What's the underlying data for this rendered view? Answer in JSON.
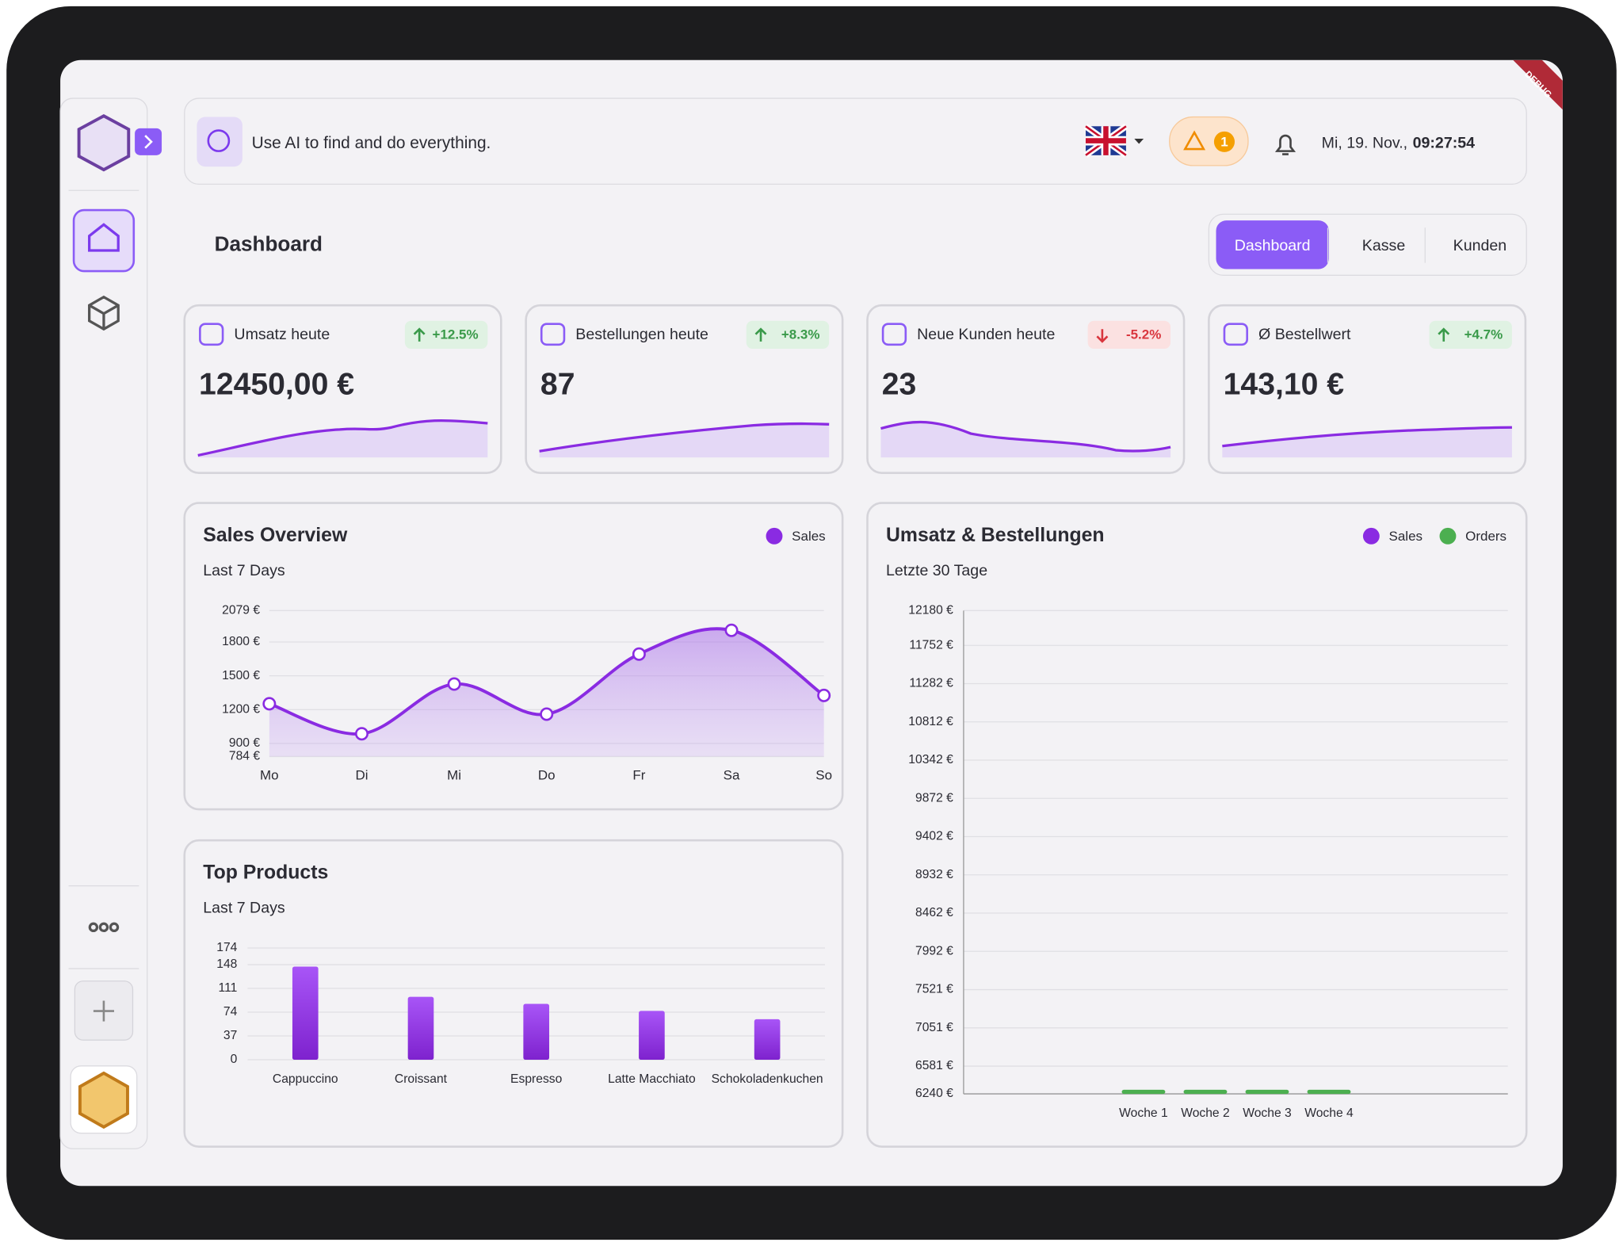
{
  "search": {
    "placeholder": "Use AI to find and do everything."
  },
  "alerts": {
    "count": 1
  },
  "datetime": {
    "date": "Mi, 19. Nov.,",
    "time": "09:27:54"
  },
  "debug_banner": "DEBUG",
  "page_title": "Dashboard",
  "tabs": [
    "Dashboard",
    "Kasse",
    "Kunden"
  ],
  "kpis": [
    {
      "title": "Umsatz heute",
      "change": "+12.5%",
      "value": "12450,00 €"
    },
    {
      "title": "Bestellungen heute",
      "change": "+8.3%",
      "value": "87"
    },
    {
      "title": "Neue Kunden heute",
      "change": "-5.2%",
      "value": "23"
    },
    {
      "title": "Ø Bestellwert",
      "change": "+4.7%",
      "value": "143,10 €"
    }
  ],
  "chart_data": [
    {
      "type": "line",
      "title": "Sales Overview",
      "subtitle": "Last 7 Days",
      "categories": [
        "Mo",
        "Di",
        "Mi",
        "Do",
        "Fr",
        "Sa",
        "So"
      ],
      "series": [
        {
          "name": "Sales",
          "color": "#8a2be2",
          "values": [
            1252,
            986,
            1427,
            1160,
            1693,
            1904,
            1326
          ]
        }
      ],
      "ylim": [
        784,
        2079
      ],
      "yticks": [
        {
          "value": 784,
          "label": "784 €"
        },
        {
          "value": 900,
          "label": "900 €"
        },
        {
          "value": 1200,
          "label": "1200 €"
        },
        {
          "value": 1500,
          "label": "1500 €"
        },
        {
          "value": 1800,
          "label": "1800 €"
        },
        {
          "value": 2079,
          "label": "2079 €"
        }
      ],
      "grid": true
    },
    {
      "type": "bar",
      "title": "Top Products",
      "subtitle": "Last 7 Days",
      "categories": [
        "Cappuccino",
        "Croissant",
        "Espresso",
        "Latte Macchiato",
        "Schokoladenkuchen"
      ],
      "values": [
        145,
        98,
        87,
        76,
        63
      ],
      "color": "#9333ea",
      "ylim": [
        0,
        174
      ],
      "yticks": [
        0,
        37,
        74,
        111,
        148,
        174
      ],
      "grid": true
    },
    {
      "type": "bar",
      "title": "Umsatz & Bestellungen",
      "subtitle": "Letzte 30 Tage",
      "categories": [
        "Woche 1",
        "Woche 2",
        "Woche 3",
        "Woche 4"
      ],
      "series": [
        {
          "name": "Sales",
          "color": "#8a2be2",
          "values": [
            null,
            null,
            null,
            null
          ]
        },
        {
          "name": "Orders",
          "color": "#4caf50",
          "values": [
            6291,
            6291,
            6291,
            6291
          ]
        }
      ],
      "ylim": [
        6240,
        12180
      ],
      "yticks": [
        {
          "value": 6240,
          "label": "6240 €"
        },
        {
          "value": 6581,
          "label": "6581 €"
        },
        {
          "value": 7051,
          "label": "7051 €"
        },
        {
          "value": 7521,
          "label": "7521 €"
        },
        {
          "value": 7992,
          "label": "7992 €"
        },
        {
          "value": 8462,
          "label": "8462 €"
        },
        {
          "value": 8932,
          "label": "8932 €"
        },
        {
          "value": 9402,
          "label": "9402 €"
        },
        {
          "value": 9872,
          "label": "9872 €"
        },
        {
          "value": 10342,
          "label": "10342 €"
        },
        {
          "value": 10812,
          "label": "10812 €"
        },
        {
          "value": 11282,
          "label": "11282 €"
        },
        {
          "value": 11752,
          "label": "11752 €"
        },
        {
          "value": 12180,
          "label": "12180 €"
        }
      ],
      "grid": true
    }
  ]
}
